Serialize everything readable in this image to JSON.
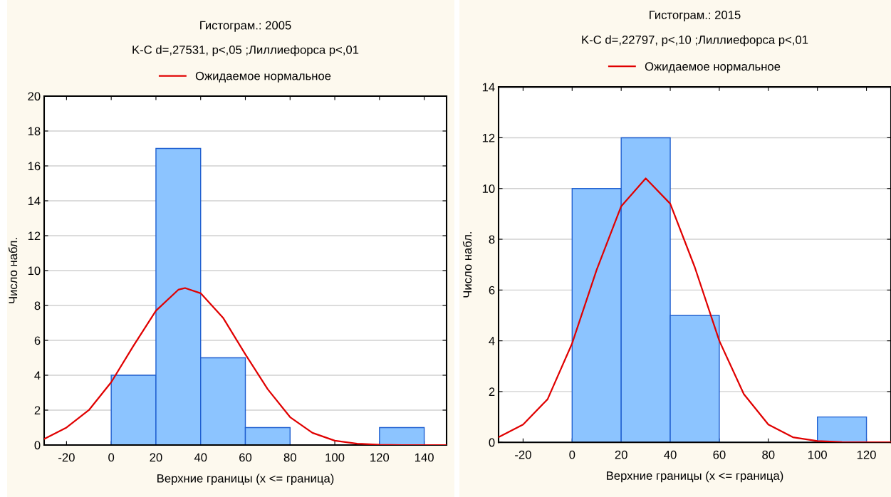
{
  "chart_data": [
    {
      "type": "histogram",
      "title": "Гистограм.: 2005",
      "subtitle": "K-C d=,27531, p<,05 ;Лиллиефорса p<,01",
      "xlabel": "Верхние границы (x <= граница)",
      "ylabel": "Число набл.",
      "bins": [
        -20,
        0,
        20,
        40,
        60,
        80,
        100,
        120,
        140
      ],
      "values": [
        0,
        4,
        17,
        5,
        1,
        0,
        0,
        1
      ],
      "color": "#8cc4ff",
      "series": [
        {
          "type": "line",
          "name": "Ожидаемое нормальное",
          "color": "#e00000",
          "x": [
            -30,
            -20,
            -10,
            0,
            10,
            20,
            30,
            33,
            40,
            50,
            60,
            70,
            80,
            90,
            100,
            110,
            120,
            130,
            150
          ],
          "values": [
            0.35,
            1.0,
            2.0,
            3.6,
            5.7,
            7.7,
            8.9,
            9.0,
            8.7,
            7.3,
            5.2,
            3.2,
            1.6,
            0.7,
            0.25,
            0.08,
            0.02,
            0,
            0
          ]
        }
      ],
      "xlim": [
        -30,
        150
      ],
      "xticks": [
        -20,
        0,
        20,
        40,
        60,
        80,
        100,
        120,
        140
      ],
      "ylim": [
        0,
        20
      ],
      "yticks": [
        0,
        2,
        4,
        6,
        8,
        10,
        12,
        14,
        16,
        18,
        20
      ],
      "grid": "y",
      "legend": "top"
    },
    {
      "type": "histogram",
      "title": "Гистограм.: 2015",
      "subtitle": "K-C d=,22797, p<,10 ;Лиллиефорса p<,01",
      "xlabel": "Верхние границы (x <= граница)",
      "ylabel": "Число набл.",
      "bins": [
        -20,
        0,
        20,
        40,
        60,
        80,
        100,
        120
      ],
      "values": [
        0,
        10,
        12,
        5,
        0,
        0,
        1
      ],
      "color": "#8cc4ff",
      "series": [
        {
          "type": "line",
          "name": "Ожидаемое нормальное",
          "color": "#e00000",
          "x": [
            -30,
            -20,
            -10,
            0,
            10,
            20,
            30,
            40,
            50,
            60,
            70,
            80,
            90,
            100,
            110,
            130
          ],
          "values": [
            0.2,
            0.7,
            1.7,
            3.9,
            6.8,
            9.3,
            10.4,
            9.4,
            6.9,
            4.0,
            1.9,
            0.7,
            0.2,
            0.05,
            0.01,
            0
          ]
        }
      ],
      "xlim": [
        -30,
        130
      ],
      "xticks": [
        -20,
        0,
        20,
        40,
        60,
        80,
        100,
        120
      ],
      "ylim": [
        0,
        14
      ],
      "yticks": [
        0,
        2,
        4,
        6,
        8,
        10,
        12,
        14
      ],
      "grid": "y",
      "legend": "top"
    }
  ]
}
